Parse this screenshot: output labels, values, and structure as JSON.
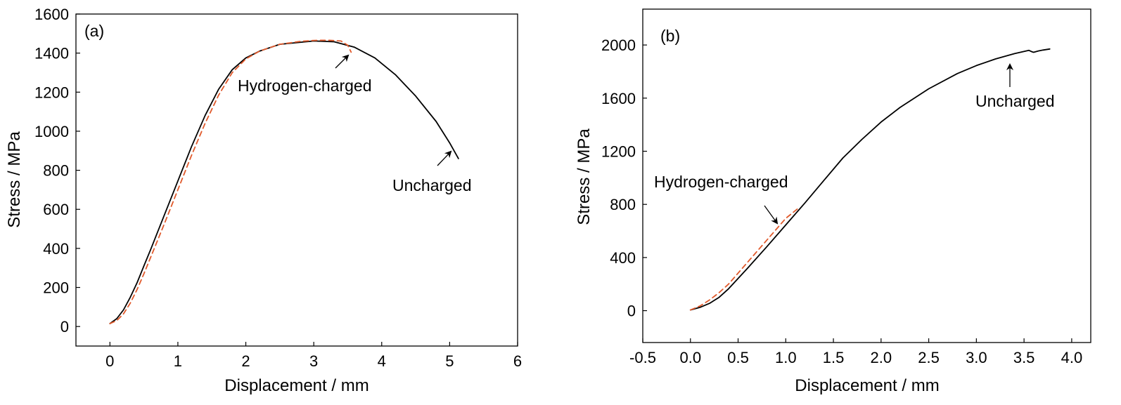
{
  "chart_data": [
    {
      "type": "line",
      "panel_label": "(a)",
      "xlabel": "Displacement / mm",
      "ylabel": "Stress / MPa",
      "xlim": [
        -0.5,
        6
      ],
      "ylim": [
        -100,
        1600
      ],
      "xticks": [
        0,
        1,
        2,
        3,
        4,
        5,
        6
      ],
      "xtick_labels": [
        "0",
        "1",
        "2",
        "3",
        "4",
        "5",
        "6"
      ],
      "yticks": [
        0,
        200,
        400,
        600,
        800,
        1000,
        1200,
        1400,
        1600
      ],
      "ytick_labels": [
        "0",
        "200",
        "400",
        "600",
        "800",
        "1000",
        "1200",
        "1400",
        "1600"
      ],
      "grid": false,
      "series": [
        {
          "name": "Uncharged",
          "color": "#000000",
          "style": "solid",
          "x": [
            0,
            0.1,
            0.2,
            0.3,
            0.4,
            0.5,
            0.6,
            0.8,
            1.0,
            1.2,
            1.4,
            1.6,
            1.8,
            2.0,
            2.2,
            2.5,
            3.0,
            3.3,
            3.6,
            3.9,
            4.2,
            4.5,
            4.8,
            5.0,
            5.13
          ],
          "y": [
            15,
            40,
            85,
            150,
            225,
            310,
            395,
            570,
            745,
            920,
            1080,
            1215,
            1315,
            1375,
            1410,
            1445,
            1462,
            1458,
            1430,
            1375,
            1290,
            1180,
            1050,
            940,
            860
          ]
        },
        {
          "name": "Hydrogen-charged",
          "color": "#E15A2C",
          "style": "dashed",
          "x": [
            0,
            0.1,
            0.2,
            0.3,
            0.4,
            0.5,
            0.6,
            0.8,
            1.0,
            1.2,
            1.4,
            1.6,
            1.8,
            2.0,
            2.2,
            2.5,
            2.8,
            3.0,
            3.2,
            3.4,
            3.5,
            3.55
          ],
          "y": [
            15,
            30,
            65,
            120,
            190,
            270,
            355,
            525,
            700,
            875,
            1040,
            1185,
            1300,
            1370,
            1410,
            1445,
            1460,
            1465,
            1466,
            1462,
            1440,
            1405
          ]
        }
      ],
      "annotations": [
        {
          "text": "Hydrogen-charged",
          "points_to": {
            "x": 3.55,
            "y": 1440
          }
        },
        {
          "text": "Uncharged",
          "points_to": {
            "x": 5.0,
            "y": 900
          }
        }
      ]
    },
    {
      "type": "line",
      "panel_label": "(b)",
      "xlabel": "Displacement / mm",
      "ylabel": "Stress / MPa",
      "xlim": [
        -0.5,
        4.2
      ],
      "ylim": [
        -240,
        2270
      ],
      "xticks": [
        -0.5,
        0.0,
        0.5,
        1.0,
        1.5,
        2.0,
        2.5,
        3.0,
        3.5,
        4.0
      ],
      "xtick_labels": [
        "-0.5",
        "0.0",
        "0.5",
        "1.0",
        "1.5",
        "2.0",
        "2.5",
        "3.0",
        "3.5",
        "4.0"
      ],
      "yticks": [
        0,
        400,
        800,
        1200,
        1600,
        2000
      ],
      "ytick_labels": [
        "0",
        "400",
        "800",
        "1200",
        "1600",
        "2000"
      ],
      "grid": false,
      "series": [
        {
          "name": "Uncharged",
          "color": "#000000",
          "style": "solid",
          "x": [
            0,
            0.1,
            0.2,
            0.3,
            0.4,
            0.6,
            0.8,
            1.0,
            1.2,
            1.4,
            1.6,
            1.8,
            2.0,
            2.2,
            2.5,
            2.8,
            3.0,
            3.2,
            3.4,
            3.55,
            3.58,
            3.6,
            3.65,
            3.7,
            3.77
          ],
          "y": [
            5,
            25,
            55,
            100,
            165,
            320,
            480,
            645,
            810,
            980,
            1150,
            1290,
            1420,
            1530,
            1670,
            1785,
            1845,
            1895,
            1935,
            1960,
            1950,
            1945,
            1955,
            1962,
            1970
          ]
        },
        {
          "name": "Hydrogen-charged",
          "color": "#E15A2C",
          "style": "dashed",
          "x": [
            0,
            0.1,
            0.2,
            0.3,
            0.4,
            0.6,
            0.8,
            1.0,
            1.13
          ],
          "y": [
            5,
            35,
            80,
            135,
            200,
            365,
            530,
            695,
            770
          ]
        }
      ],
      "annotations": [
        {
          "text": "Hydrogen-charged",
          "points_to": {
            "x": 0.93,
            "y": 650
          }
        },
        {
          "text": "Uncharged",
          "points_to": {
            "x": 3.4,
            "y": 1910
          }
        }
      ]
    }
  ]
}
